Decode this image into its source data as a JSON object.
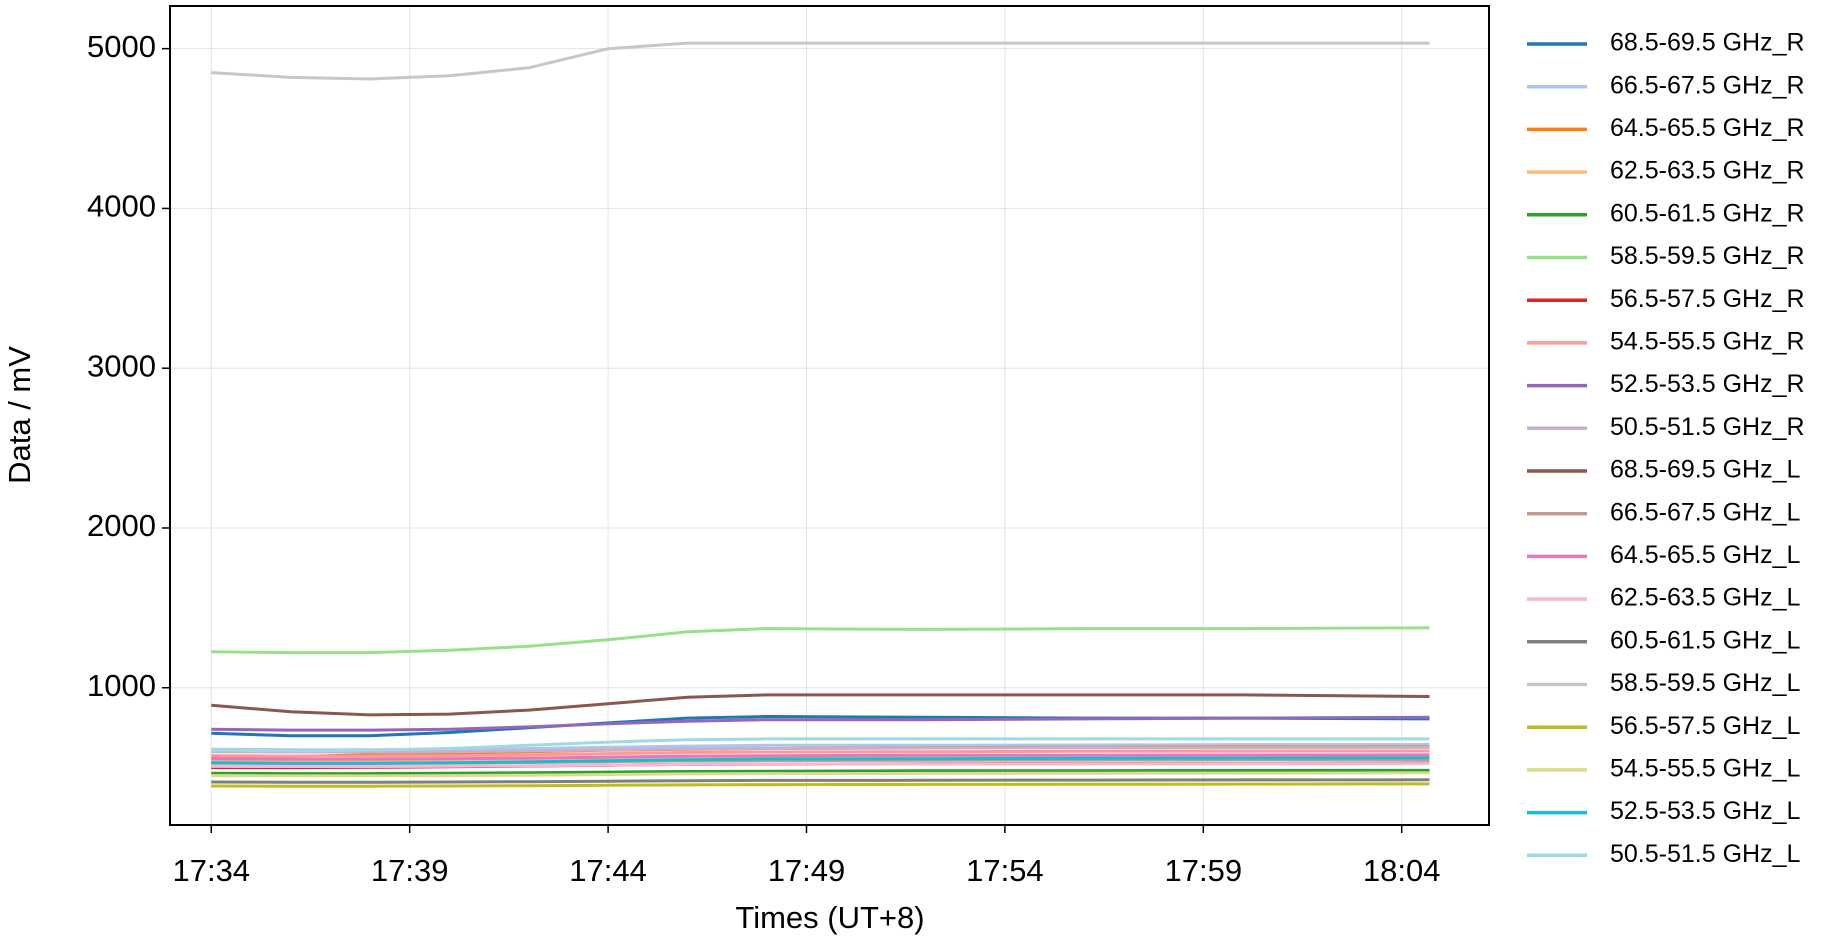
{
  "chart_data": {
    "type": "line",
    "xlabel": "Times (UT+8)",
    "ylabel": "Data / mV",
    "x": [
      1054,
      1056,
      1058,
      1060,
      1062,
      1064,
      1066,
      1068,
      1072,
      1076,
      1080,
      1084.7
    ],
    "xlim": [
      1052.96,
      1086.2
    ],
    "xticks": [
      {
        "value": 1054,
        "label": "17:34"
      },
      {
        "value": 1059,
        "label": "17:39"
      },
      {
        "value": 1064,
        "label": "17:44"
      },
      {
        "value": 1069,
        "label": "17:49"
      },
      {
        "value": 1074,
        "label": "17:54"
      },
      {
        "value": 1079,
        "label": "17:59"
      },
      {
        "value": 1084,
        "label": "18:04"
      }
    ],
    "ylim": [
      141,
      5267
    ],
    "yticks": [
      1000,
      2000,
      3000,
      4000,
      5000
    ],
    "grid": true,
    "legend": "outside-right",
    "series": [
      {
        "name": "68.5-69.5 GHz_R",
        "color": "#1f77b4",
        "values": [
          715,
          700,
          700,
          720,
          750,
          780,
          810,
          820,
          815,
          810,
          810,
          805
        ]
      },
      {
        "name": "66.5-67.5 GHz_R",
        "color": "#aec7e8",
        "values": [
          615,
          612,
          612,
          615,
          620,
          628,
          635,
          640,
          640,
          642,
          645,
          645
        ]
      },
      {
        "name": "64.5-65.5 GHz_R",
        "color": "#ff7f0e",
        "values": [
          560,
          570,
          580,
          590,
          600,
          610,
          615,
          620,
          625,
          628,
          630,
          630
        ]
      },
      {
        "name": "62.5-63.5 GHz_R",
        "color": "#ffbb78",
        "values": [
          535,
          535,
          537,
          540,
          545,
          550,
          555,
          558,
          560,
          562,
          563,
          565
        ]
      },
      {
        "name": "60.5-61.5 GHz_R",
        "color": "#2ca02c",
        "values": [
          465,
          463,
          463,
          465,
          468,
          472,
          476,
          478,
          480,
          481,
          482,
          483
        ]
      },
      {
        "name": "58.5-59.5 GHz_R",
        "color": "#98df8a",
        "values": [
          1225,
          1220,
          1220,
          1235,
          1260,
          1300,
          1350,
          1370,
          1365,
          1370,
          1370,
          1375
        ]
      },
      {
        "name": "56.5-57.5 GHz_R",
        "color": "#d62728",
        "values": [
          500,
          500,
          502,
          505,
          510,
          515,
          520,
          522,
          524,
          525,
          526,
          527
        ]
      },
      {
        "name": "54.5-55.5 GHz_R",
        "color": "#ff9896",
        "values": [
          575,
          572,
          572,
          575,
          580,
          588,
          595,
          598,
          600,
          602,
          603,
          604
        ]
      },
      {
        "name": "52.5-53.5 GHz_R",
        "color": "#9467bd",
        "values": [
          740,
          735,
          735,
          740,
          755,
          775,
          790,
          800,
          800,
          805,
          810,
          815
        ]
      },
      {
        "name": "50.5-51.5 GHz_R",
        "color": "#c5b0d5",
        "values": [
          600,
          598,
          598,
          600,
          605,
          612,
          618,
          620,
          622,
          624,
          625,
          626
        ]
      },
      {
        "name": "68.5-69.5 GHz_L",
        "color": "#8c564b",
        "values": [
          890,
          850,
          830,
          835,
          860,
          900,
          940,
          955,
          955,
          955,
          955,
          945
        ]
      },
      {
        "name": "66.5-67.5 GHz_L",
        "color": "#c49c94",
        "values": [
          528,
          526,
          526,
          528,
          532,
          537,
          542,
          545,
          546,
          547,
          548,
          548
        ]
      },
      {
        "name": "64.5-65.5 GHz_L",
        "color": "#e377c2",
        "values": [
          555,
          553,
          553,
          556,
          560,
          566,
          572,
          575,
          577,
          578,
          579,
          580
        ]
      },
      {
        "name": "62.5-63.5 GHz_L",
        "color": "#f7b6d2",
        "values": [
          508,
          507,
          507,
          509,
          512,
          516,
          520,
          522,
          523,
          524,
          525,
          525
        ]
      },
      {
        "name": "60.5-61.5 GHz_L",
        "color": "#7f7f7f",
        "values": [
          410,
          408,
          408,
          410,
          412,
          415,
          418,
          420,
          421,
          422,
          423,
          424
        ]
      },
      {
        "name": "58.5-59.5 GHz_L",
        "color": "#c7c7c7",
        "values": [
          4850,
          4820,
          4810,
          4830,
          4880,
          5000,
          5035,
          5035,
          5035,
          5035,
          5035,
          5035
        ]
      },
      {
        "name": "56.5-57.5 GHz_L",
        "color": "#bcbd22",
        "values": [
          385,
          384,
          384,
          385,
          387,
          390,
          392,
          394,
          395,
          396,
          397,
          398
        ]
      },
      {
        "name": "54.5-55.5 GHz_L",
        "color": "#dbdb8d",
        "values": [
          450,
          448,
          448,
          450,
          453,
          457,
          461,
          463,
          464,
          465,
          466,
          467
        ]
      },
      {
        "name": "52.5-53.5 GHz_L",
        "color": "#17becf",
        "values": [
          530,
          528,
          528,
          531,
          536,
          543,
          550,
          554,
          556,
          558,
          560,
          561
        ]
      },
      {
        "name": "50.5-51.5 GHz_L",
        "color": "#9edae5",
        "values": [
          610,
          605,
          610,
          620,
          640,
          660,
          675,
          680,
          680,
          680,
          680,
          680
        ]
      }
    ]
  }
}
